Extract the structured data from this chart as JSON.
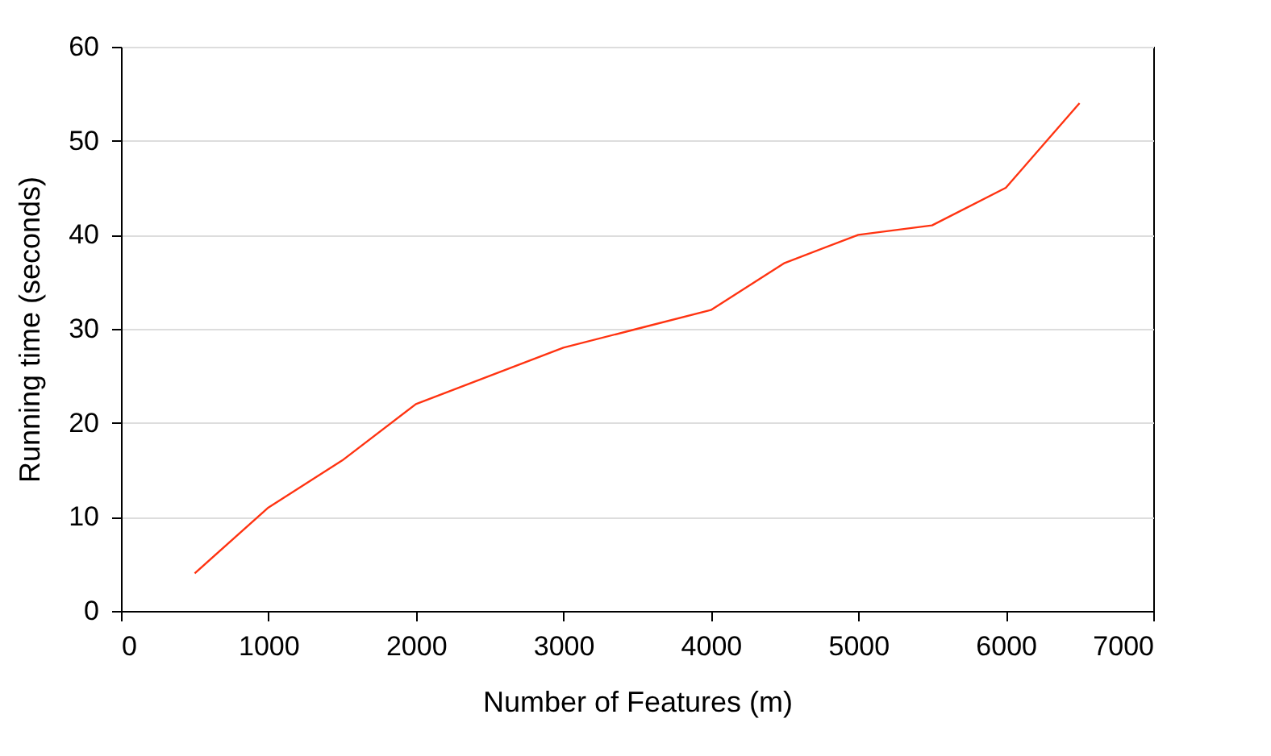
{
  "chart_data": {
    "type": "line",
    "xlabel": "Number of Features (m)",
    "ylabel": "Running time (seconds)",
    "x": [
      500,
      1000,
      1500,
      2000,
      2500,
      3000,
      3500,
      4000,
      4500,
      5000,
      5500,
      6000,
      6500
    ],
    "series": [
      {
        "color": "#ff3311",
        "values": [
          4,
          11,
          16,
          22,
          25,
          28,
          30,
          32,
          37,
          40,
          41,
          45,
          54
        ]
      }
    ],
    "xlim": [
      0,
      7000
    ],
    "xticks": [
      0,
      1000,
      2000,
      3000,
      4000,
      5000,
      6000,
      7000
    ],
    "ylim": [
      0,
      60
    ],
    "yticks": [
      0,
      10,
      20,
      30,
      40,
      50,
      60
    ],
    "grid": "y",
    "marker": "none",
    "line_style": "solid"
  }
}
